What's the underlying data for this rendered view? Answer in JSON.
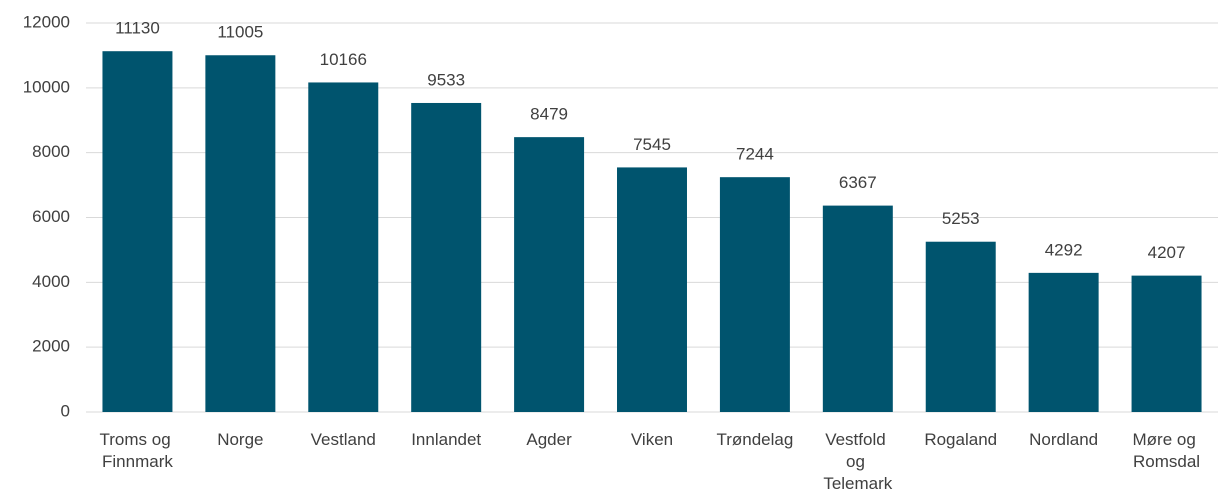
{
  "chart_data": {
    "type": "bar",
    "categories": [
      "Troms og Finnmark",
      "Norge",
      "Vestland",
      "Innlandet",
      "Agder",
      "Viken",
      "Trøndelag",
      "Vestfold og Telemark",
      "Rogaland",
      "Nordland",
      "Møre og Romsdal"
    ],
    "values": [
      11130,
      11005,
      10166,
      9533,
      8479,
      7545,
      7244,
      6367,
      5253,
      4292,
      4207
    ],
    "color": "#00546e",
    "ylim": [
      0,
      12000
    ],
    "yticks": [
      0,
      2000,
      4000,
      6000,
      8000,
      10000,
      12000
    ],
    "grid": true
  }
}
